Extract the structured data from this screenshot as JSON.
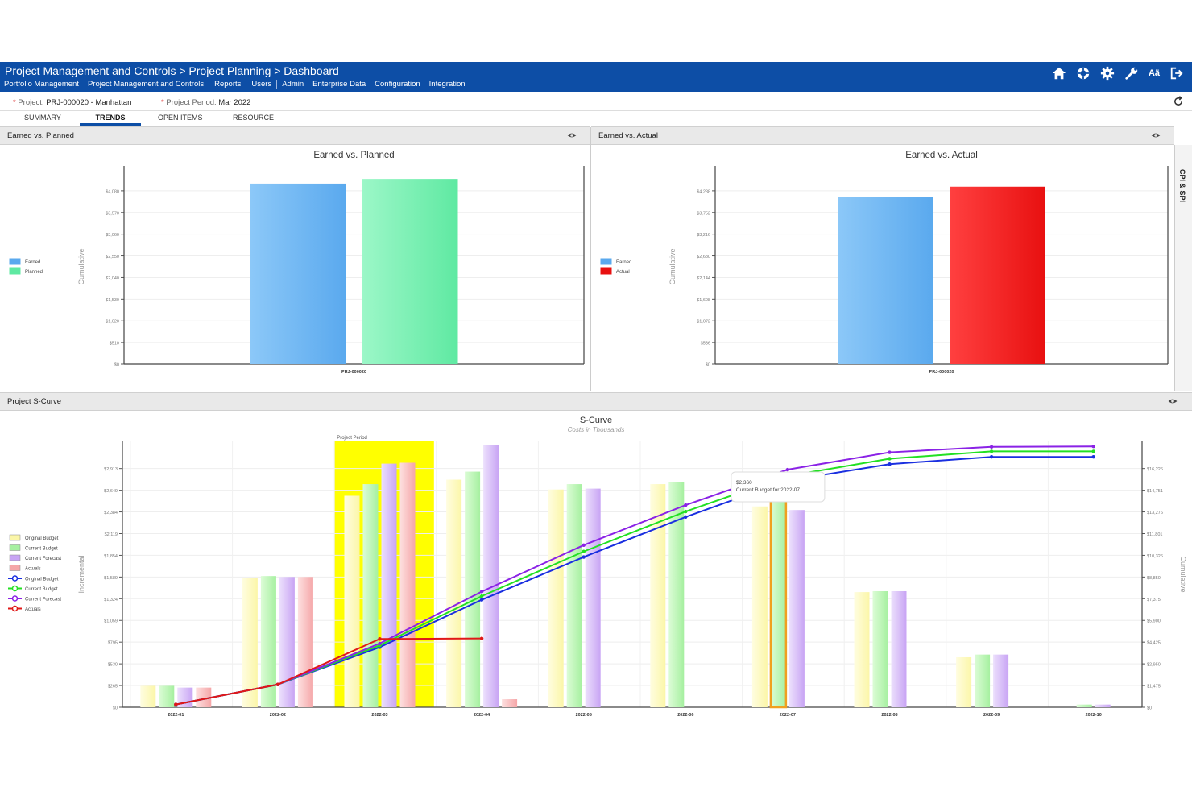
{
  "header": {
    "breadcrumb": "Project Management and Controls > Project Planning > Dashboard",
    "nav": [
      "Portfolio Management",
      "Project Management and Controls",
      "Reports",
      "Users",
      "Admin",
      "Enterprise Data",
      "Configuration",
      "Integration"
    ],
    "icons": [
      "home-icon",
      "help-icon",
      "settings-icon",
      "wrench-icon",
      "translate-icon",
      "logout-icon"
    ],
    "translate_label": "Aä"
  },
  "filters": {
    "project_label": "Project:",
    "project_value": "PRJ-000020 - Manhattan",
    "period_label": "Project Period:",
    "period_value": "Mar 2022"
  },
  "tabs": [
    "SUMMARY",
    "TRENDS",
    "OPEN ITEMS",
    "RESOURCE"
  ],
  "active_tab": "TRENDS",
  "panels": {
    "earned_planned": "Earned vs. Planned",
    "earned_actual": "Earned vs. Actual",
    "scurve": "Project S-Curve",
    "side_tab": "CPI & SPI"
  },
  "colors": {
    "header": "#0d4ea6",
    "earned": "#5aa9ee",
    "planned": "#5fe9a2",
    "actual": "#e81010",
    "original_budget": "#fbf6a8",
    "current_budget": "#a6f0a0",
    "current_forecast": "#c8a4f4",
    "actuals_bar": "#f5a6a8",
    "line_original": "#1a2fe0",
    "line_current": "#22e022",
    "line_forecast": "#8a22e6",
    "line_actuals": "#e01818",
    "highlight": "#ffff00"
  },
  "chart_data": [
    {
      "type": "bar",
      "title": "Earned vs. Planned",
      "ylabel": "Cumulative",
      "categories": [
        "PRJ-000020"
      ],
      "series": [
        {
          "name": "Earned",
          "values": [
            4250
          ]
        },
        {
          "name": "Planned",
          "values": [
            4360
          ]
        }
      ],
      "yticks": [
        "$0",
        "$510",
        "$1,020",
        "$1,530",
        "$2,040",
        "$2,550",
        "$3,060",
        "$3,570",
        "$4,080"
      ],
      "ylim": [
        0,
        4590
      ],
      "legend": "left"
    },
    {
      "type": "bar",
      "title": "Earned vs. Actual",
      "ylabel": "Cumulative",
      "categories": [
        "PRJ-000020"
      ],
      "series": [
        {
          "name": "Earned",
          "values": [
            4130
          ]
        },
        {
          "name": "Actual",
          "values": [
            4390
          ]
        }
      ],
      "yticks": [
        "$0",
        "$536",
        "$1,072",
        "$1,608",
        "$2,144",
        "$2,680",
        "$3,216",
        "$3,752",
        "$4,288"
      ],
      "ylim": [
        0,
        4824
      ],
      "legend": "left"
    },
    {
      "type": "bar",
      "title": "S-Curve",
      "subtitle": "Costs in Thousands",
      "ylabel": "Incremental",
      "y2label": "Cumulative",
      "categories": [
        "2022-01",
        "2022-02",
        "2022-03",
        "2022-04",
        "2022-05",
        "2022-06",
        "2022-07",
        "2022-08",
        "2022-09",
        "2022-10"
      ],
      "series": [
        {
          "name": "Original Budget",
          "kind": "bar",
          "values": [
            240,
            1450,
            2370,
            2550,
            2440,
            2500,
            2250,
            1290,
            560,
            null
          ]
        },
        {
          "name": "Current Budget",
          "kind": "bar",
          "values": [
            240,
            1470,
            2500,
            2640,
            2500,
            2520,
            2360,
            1300,
            590,
            30
          ]
        },
        {
          "name": "Current Forecast",
          "kind": "bar",
          "values": [
            220,
            1460,
            2730,
            2940,
            2450,
            0,
            2210,
            1300,
            590,
            30
          ]
        },
        {
          "name": "Actuals",
          "kind": "bar",
          "values": [
            220,
            1460,
            2740,
            90,
            null,
            null,
            null,
            null,
            null,
            null
          ]
        },
        {
          "name": "Original Budget",
          "kind": "line",
          "values": [
            300,
            2500,
            6600,
            11800,
            16500,
            20900,
            24900,
            26700,
            27500,
            27500
          ]
        },
        {
          "name": "Current Budget",
          "kind": "line",
          "values": [
            300,
            2500,
            6800,
            12200,
            17100,
            21500,
            25400,
            27300,
            28100,
            28100
          ]
        },
        {
          "name": "Current Forecast",
          "kind": "line",
          "values": [
            300,
            2500,
            7000,
            12700,
            17800,
            22200,
            26100,
            28000,
            28600,
            28650
          ]
        },
        {
          "name": "Actuals",
          "kind": "line",
          "values": [
            300,
            2500,
            7500,
            7550,
            null,
            null,
            null,
            null,
            null,
            null
          ]
        }
      ],
      "yticks": [
        "$0",
        "$265",
        "$530",
        "$795",
        "$1,059",
        "$1,324",
        "$1,589",
        "$1,854",
        "$2,119",
        "$2,384",
        "$2,649",
        "$2,913"
      ],
      "y2ticks": [
        "$0",
        "$1,475",
        "$2,950",
        "$4,425",
        "$5,900",
        "$7,375",
        "$8,850",
        "$10,326",
        "$11,801",
        "$13,276",
        "$14,751",
        "$16,226"
      ],
      "ylim": [
        0,
        2979
      ],
      "y2lim": [
        0,
        29200
      ],
      "highlight_band": "2022-03",
      "highlight_label": "Project Period",
      "tooltip": {
        "category": "2022-07",
        "value": "$2,360",
        "text": "Current Budget for 2022-07"
      },
      "legend": "left"
    }
  ]
}
